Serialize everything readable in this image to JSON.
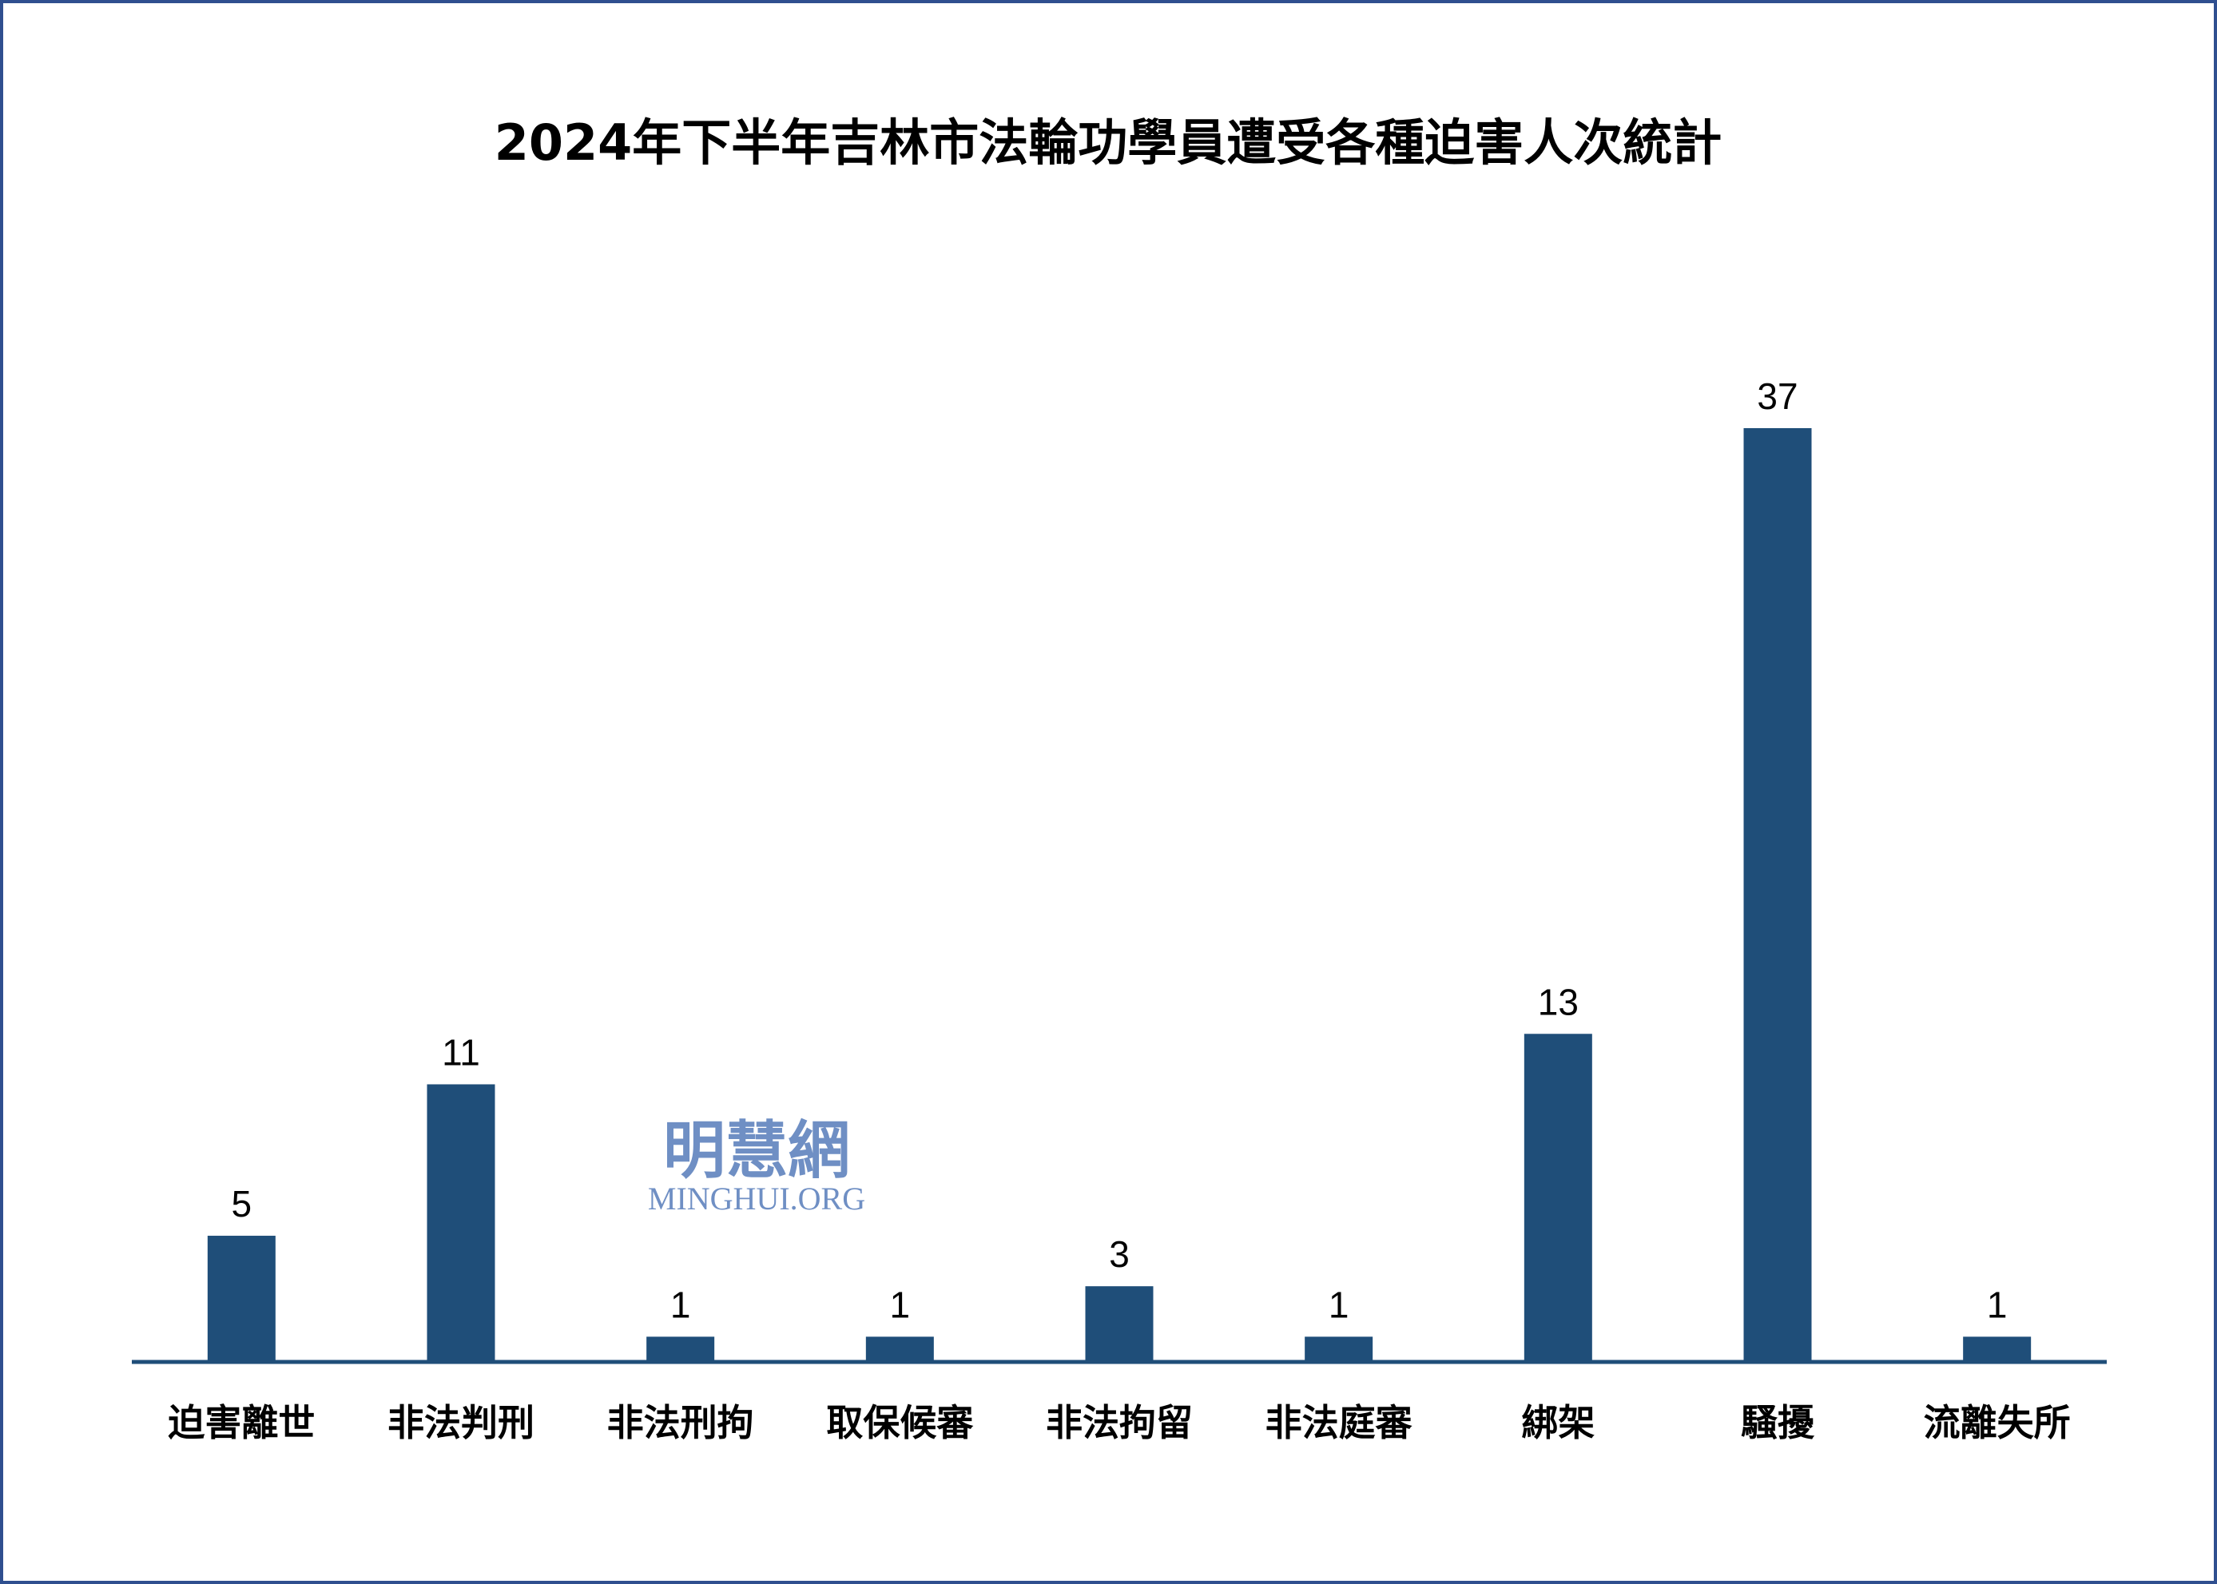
{
  "chart_data": {
    "type": "bar",
    "title": "2024年下半年吉林市法輪功學員遭受各種迫害人次統計",
    "categories": [
      "迫害離世",
      "非法判刑",
      "非法刑拘",
      "取保候審",
      "非法拘留",
      "非法庭審",
      "綁架",
      "騷擾",
      "流離失所"
    ],
    "values": [
      5,
      11,
      1,
      1,
      3,
      1,
      13,
      37,
      1
    ],
    "xlabel": "",
    "ylabel": "",
    "ylim": [
      0,
      37
    ],
    "grid": false,
    "legend": "none",
    "data_labels": true,
    "colors": {
      "bar": "#1f4e79",
      "axis": "#1f4e79",
      "border": "#2f4f8f",
      "watermark": "#6f8fc4"
    }
  },
  "watermark": {
    "logo_text": "明慧網",
    "site": "MINGHUI.ORG"
  }
}
